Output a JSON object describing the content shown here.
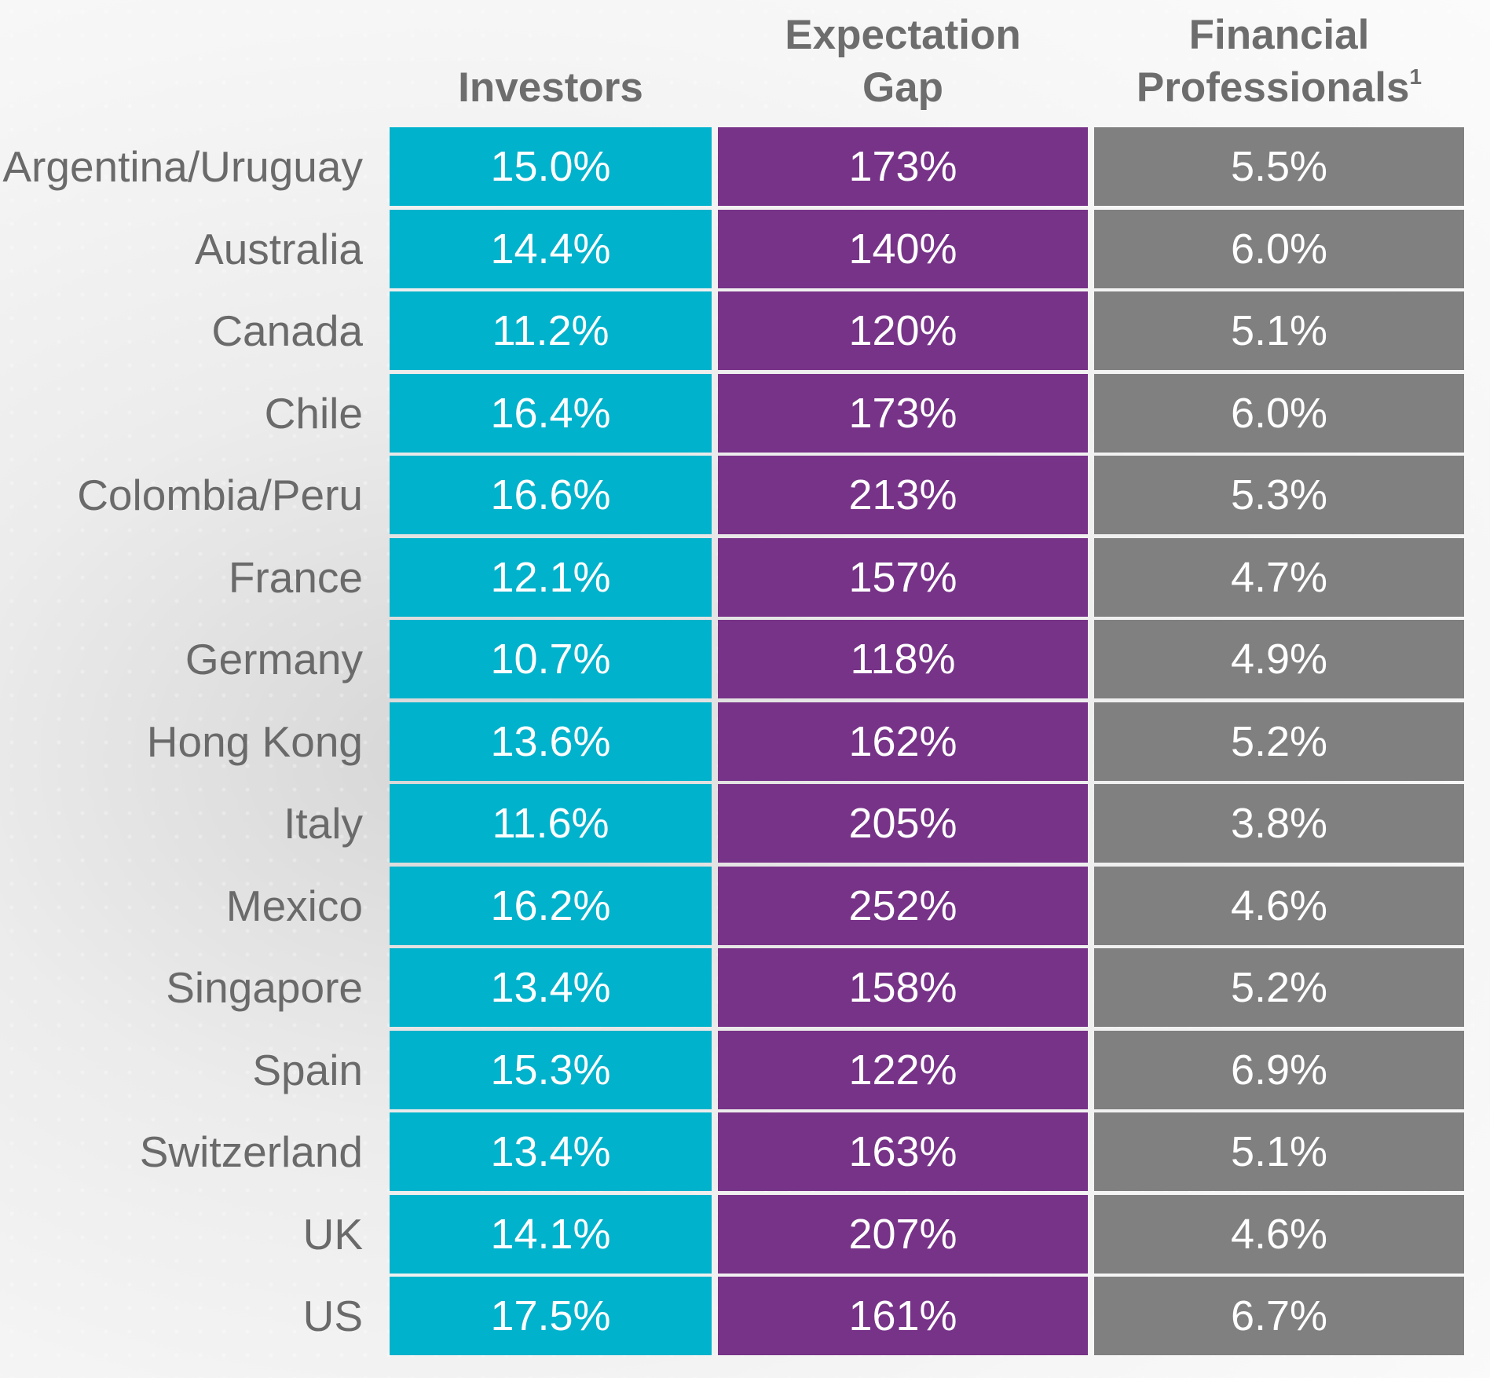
{
  "chart_data": {
    "type": "table",
    "columns": [
      {
        "key": "investors",
        "label": "Investors",
        "color": "#00b2cc"
      },
      {
        "key": "gap",
        "label_line1": "Expectation",
        "label_line2": "Gap",
        "color": "#773388"
      },
      {
        "key": "professionals",
        "label_line1": "Financial",
        "label_line2": "Professionals",
        "footnote": "1",
        "color": "#808080"
      }
    ],
    "rows": [
      {
        "country": "Argentina/Uruguay",
        "investors": "15.0%",
        "gap": "173%",
        "professionals": "5.5%"
      },
      {
        "country": "Australia",
        "investors": "14.4%",
        "gap": "140%",
        "professionals": "6.0%"
      },
      {
        "country": "Canada",
        "investors": "11.2%",
        "gap": "120%",
        "professionals": "5.1%"
      },
      {
        "country": "Chile",
        "investors": "16.4%",
        "gap": "173%",
        "professionals": "6.0%"
      },
      {
        "country": "Colombia/Peru",
        "investors": "16.6%",
        "gap": "213%",
        "professionals": "5.3%"
      },
      {
        "country": "France",
        "investors": "12.1%",
        "gap": "157%",
        "professionals": "4.7%"
      },
      {
        "country": "Germany",
        "investors": "10.7%",
        "gap": "118%",
        "professionals": "4.9%"
      },
      {
        "country": "Hong Kong",
        "investors": "13.6%",
        "gap": "162%",
        "professionals": "5.2%"
      },
      {
        "country": "Italy",
        "investors": "11.6%",
        "gap": "205%",
        "professionals": "3.8%"
      },
      {
        "country": "Mexico",
        "investors": "16.2%",
        "gap": "252%",
        "professionals": "4.6%"
      },
      {
        "country": "Singapore",
        "investors": "13.4%",
        "gap": "158%",
        "professionals": "5.2%"
      },
      {
        "country": "Spain",
        "investors": "15.3%",
        "gap": "122%",
        "professionals": "6.9%"
      },
      {
        "country": "Switzerland",
        "investors": "13.4%",
        "gap": "163%",
        "professionals": "5.1%"
      },
      {
        "country": "UK",
        "investors": "14.1%",
        "gap": "207%",
        "professionals": "4.6%"
      },
      {
        "country": "US",
        "investors": "17.5%",
        "gap": "161%",
        "professionals": "6.7%"
      }
    ]
  }
}
